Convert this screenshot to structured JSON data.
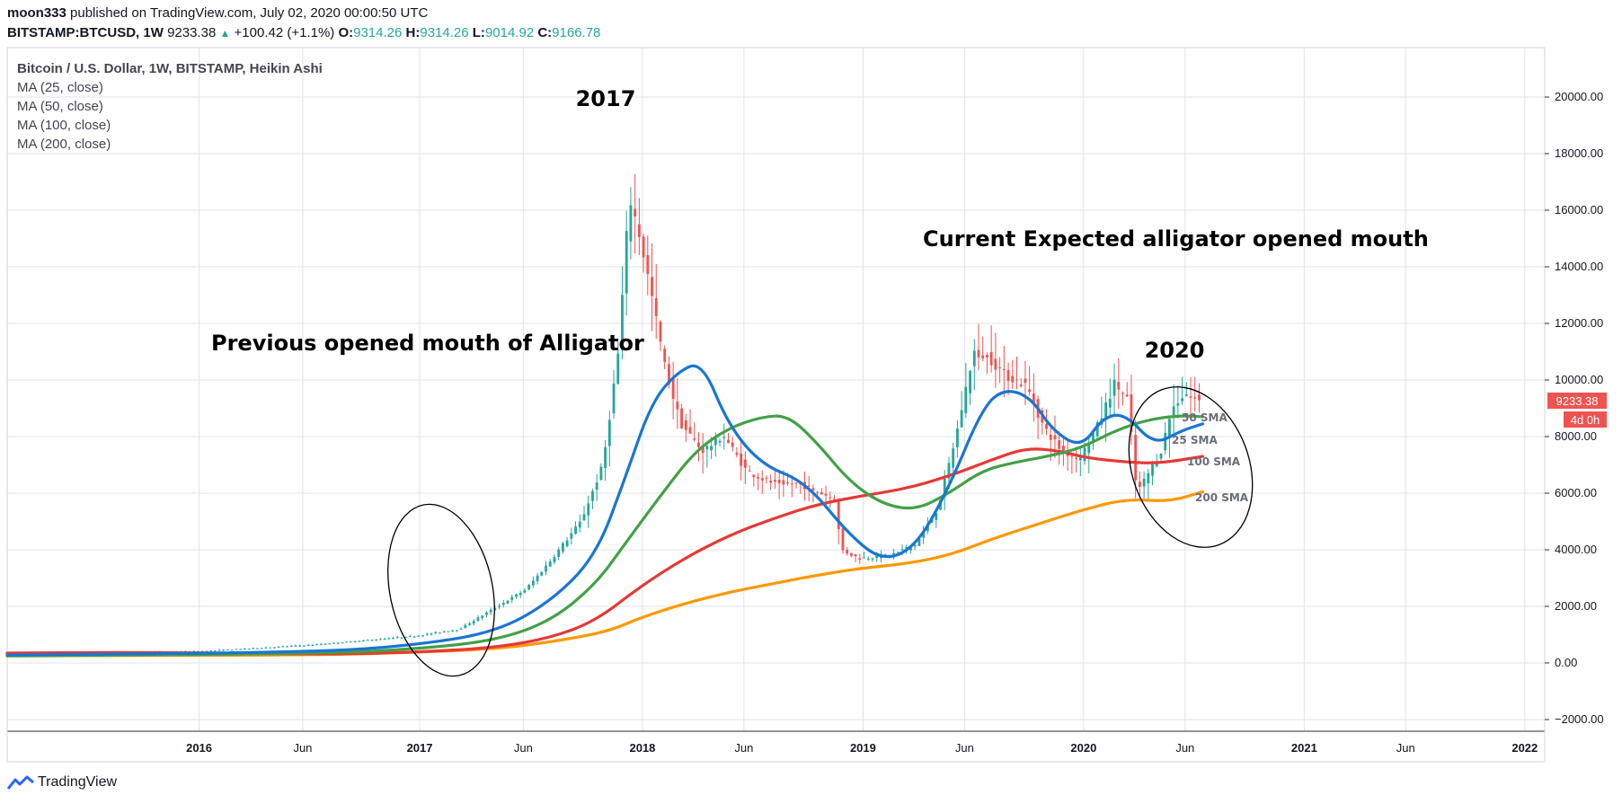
{
  "header": {
    "author": "moon333",
    "published_text": "published on TradingView.com, July 02, 2020 00:00:50 UTC",
    "symbol": "BITSTAMP:BTCUSD, 1W",
    "price": "9233.38",
    "change": "+100.42 (+1.1%)",
    "o_label": "O:",
    "o_value": "9314.26",
    "h_label": "H:",
    "h_value": "9314.26",
    "l_label": "L:",
    "l_value": "9014.92",
    "c_label": "C:",
    "c_value": "9166.78"
  },
  "legend": {
    "title": "Bitcoin / U.S. Dollar, 1W, BITSTAMP, Heikin Ashi",
    "items": [
      "MA (25, close)",
      "MA (50, close)",
      "MA (100, close)",
      "MA (200, close)"
    ]
  },
  "price_tag": {
    "value": "9233.38",
    "countdown": "4d 0h"
  },
  "footer": {
    "brand": "TradingView"
  },
  "colors": {
    "up": "#26a69a",
    "down": "#ef5350",
    "ma25": "#1976d2",
    "ma50": "#43a047",
    "ma100": "#e53935",
    "ma200": "#ff9800"
  },
  "chart_data": {
    "type": "candlestick",
    "title": "Bitcoin / U.S. Dollar, 1W, BITSTAMP, Heikin Ashi",
    "y_ticks": [
      20000,
      18000,
      16000,
      14000,
      12000,
      10000,
      8000,
      6000,
      4000,
      2000,
      0,
      -2000
    ],
    "y_tick_labels": [
      "20000.00",
      "18000.00",
      "16000.00",
      "14000.00",
      "12000.00",
      "10000.00",
      "8000.00",
      "6000.00",
      "4000.00",
      "2000.00",
      "0.00",
      "−2000.00"
    ],
    "ylim": [
      -2300,
      21500
    ],
    "xlim": [
      2015.08,
      2022.03
    ],
    "x_ticks": [
      {
        "t": 2015.95,
        "label": "2016"
      },
      {
        "t": 2016.42,
        "label": "Jun"
      },
      {
        "t": 2016.95,
        "label": "2017"
      },
      {
        "t": 2017.42,
        "label": "Jun"
      },
      {
        "t": 2017.96,
        "label": "2018"
      },
      {
        "t": 2018.42,
        "label": "Jun"
      },
      {
        "t": 2018.96,
        "label": "2019"
      },
      {
        "t": 2019.42,
        "label": "Jun"
      },
      {
        "t": 2019.96,
        "label": "2020"
      },
      {
        "t": 2020.42,
        "label": "Jun"
      },
      {
        "t": 2020.96,
        "label": "2021"
      },
      {
        "t": 2021.42,
        "label": "Jun"
      },
      {
        "t": 2021.96,
        "label": "2022"
      }
    ],
    "candle_keypoints": [
      [
        2015.08,
        250
      ],
      [
        2016.0,
        420
      ],
      [
        2016.5,
        650
      ],
      [
        2016.95,
        950
      ],
      [
        2017.15,
        1200
      ],
      [
        2017.3,
        1900
      ],
      [
        2017.45,
        2600
      ],
      [
        2017.55,
        3500
      ],
      [
        2017.7,
        5000
      ],
      [
        2017.8,
        7000
      ],
      [
        2017.87,
        11000
      ],
      [
        2017.92,
        16500
      ],
      [
        2017.97,
        15000
      ],
      [
        2018.02,
        13000
      ],
      [
        2018.08,
        10500
      ],
      [
        2018.15,
        8500
      ],
      [
        2018.25,
        7500
      ],
      [
        2018.35,
        8000
      ],
      [
        2018.45,
        6800
      ],
      [
        2018.55,
        6400
      ],
      [
        2018.7,
        6300
      ],
      [
        2018.85,
        5800
      ],
      [
        2018.88,
        4000
      ],
      [
        2018.96,
        3700
      ],
      [
        2019.1,
        3800
      ],
      [
        2019.22,
        4200
      ],
      [
        2019.32,
        5500
      ],
      [
        2019.4,
        8000
      ],
      [
        2019.48,
        11000
      ],
      [
        2019.55,
        10800
      ],
      [
        2019.62,
        10200
      ],
      [
        2019.72,
        9800
      ],
      [
        2019.8,
        8300
      ],
      [
        2019.88,
        7500
      ],
      [
        2019.96,
        7200
      ],
      [
        2020.05,
        8500
      ],
      [
        2020.12,
        9900
      ],
      [
        2020.18,
        9300
      ],
      [
        2020.22,
        6000
      ],
      [
        2020.28,
        6800
      ],
      [
        2020.33,
        7500
      ],
      [
        2020.38,
        9000
      ],
      [
        2020.45,
        9500
      ],
      [
        2020.5,
        9233
      ]
    ],
    "series": [
      {
        "name": "MA (25, close)",
        "label": "25 SMA",
        "points": [
          [
            2015.08,
            280
          ],
          [
            2016.5,
            380
          ],
          [
            2016.95,
            650
          ],
          [
            2017.3,
            1100
          ],
          [
            2017.55,
            2200
          ],
          [
            2017.75,
            3800
          ],
          [
            2017.88,
            6500
          ],
          [
            2018.0,
            9200
          ],
          [
            2018.12,
            10300
          ],
          [
            2018.23,
            10650
          ],
          [
            2018.35,
            8400
          ],
          [
            2018.5,
            7000
          ],
          [
            2018.7,
            6400
          ],
          [
            2018.9,
            4500
          ],
          [
            2019.05,
            3600
          ],
          [
            2019.2,
            4100
          ],
          [
            2019.35,
            6200
          ],
          [
            2019.5,
            9000
          ],
          [
            2019.6,
            9700
          ],
          [
            2019.72,
            9400
          ],
          [
            2019.82,
            8200
          ],
          [
            2019.95,
            7600
          ],
          [
            2020.05,
            8700
          ],
          [
            2020.15,
            8800
          ],
          [
            2020.28,
            7700
          ],
          [
            2020.4,
            8200
          ],
          [
            2020.5,
            8450
          ]
        ]
      },
      {
        "name": "MA (50, close)",
        "label": "50 SMA",
        "points": [
          [
            2015.08,
            250
          ],
          [
            2016.5,
            330
          ],
          [
            2016.95,
            500
          ],
          [
            2017.3,
            800
          ],
          [
            2017.55,
            1500
          ],
          [
            2017.75,
            2800
          ],
          [
            2017.88,
            4200
          ],
          [
            2018.05,
            6000
          ],
          [
            2018.2,
            7500
          ],
          [
            2018.35,
            8300
          ],
          [
            2018.5,
            8700
          ],
          [
            2018.62,
            8750
          ],
          [
            2018.75,
            7800
          ],
          [
            2018.9,
            6400
          ],
          [
            2019.05,
            5600
          ],
          [
            2019.2,
            5400
          ],
          [
            2019.35,
            6000
          ],
          [
            2019.5,
            6800
          ],
          [
            2019.65,
            7100
          ],
          [
            2019.8,
            7300
          ],
          [
            2019.95,
            7600
          ],
          [
            2020.1,
            8200
          ],
          [
            2020.25,
            8600
          ],
          [
            2020.4,
            8750
          ],
          [
            2020.5,
            8700
          ]
        ]
      },
      {
        "name": "MA (100, close)",
        "label": "100 SMA",
        "points": [
          [
            2015.08,
            350
          ],
          [
            2015.7,
            380
          ],
          [
            2016.5,
            300
          ],
          [
            2016.95,
            380
          ],
          [
            2017.3,
            550
          ],
          [
            2017.55,
            900
          ],
          [
            2017.75,
            1500
          ],
          [
            2017.95,
            2700
          ],
          [
            2018.15,
            3700
          ],
          [
            2018.35,
            4500
          ],
          [
            2018.55,
            5100
          ],
          [
            2018.75,
            5600
          ],
          [
            2018.95,
            5900
          ],
          [
            2019.15,
            6150
          ],
          [
            2019.35,
            6600
          ],
          [
            2019.55,
            7200
          ],
          [
            2019.7,
            7600
          ],
          [
            2019.85,
            7500
          ],
          [
            2019.97,
            7250
          ],
          [
            2020.15,
            7100
          ],
          [
            2020.3,
            7050
          ],
          [
            2020.5,
            7300
          ]
        ]
      },
      {
        "name": "MA (200, close)",
        "label": "200 SMA",
        "points": [
          [
            2015.08,
            250
          ],
          [
            2016.5,
            280
          ],
          [
            2016.95,
            380
          ],
          [
            2017.3,
            500
          ],
          [
            2017.55,
            750
          ],
          [
            2017.8,
            1100
          ],
          [
            2017.95,
            1600
          ],
          [
            2018.15,
            2100
          ],
          [
            2018.35,
            2500
          ],
          [
            2018.55,
            2800
          ],
          [
            2018.75,
            3100
          ],
          [
            2018.95,
            3350
          ],
          [
            2019.15,
            3500
          ],
          [
            2019.35,
            3800
          ],
          [
            2019.55,
            4400
          ],
          [
            2019.75,
            4900
          ],
          [
            2019.95,
            5400
          ],
          [
            2020.15,
            5800
          ],
          [
            2020.35,
            5700
          ],
          [
            2020.5,
            6050
          ]
        ]
      }
    ],
    "annotations": [
      {
        "text": "2017",
        "t": 2017.98,
        "y": 19650
      },
      {
        "text": "Current Expected alligator opened mouth",
        "t": 2020.2,
        "y": 14750
      },
      {
        "text": "Previous opened mouth of Alligator",
        "t": 2017.4,
        "y": 11100
      },
      {
        "text": "2020",
        "t": 2020.55,
        "y": 10950
      }
    ]
  }
}
